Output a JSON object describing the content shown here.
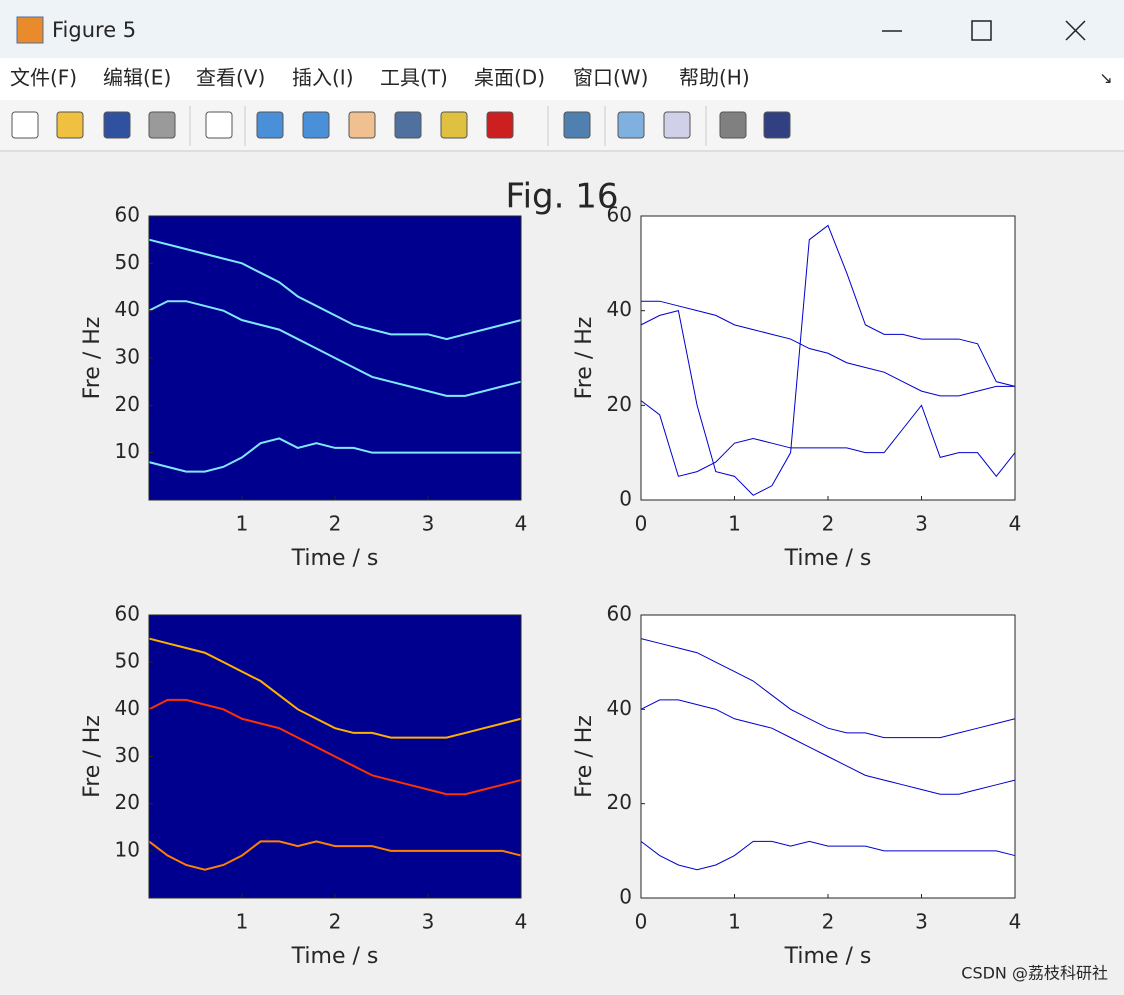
{
  "window": {
    "title": "Figure 5",
    "menu": [
      "文件(F)",
      "编辑(E)",
      "查看(V)",
      "插入(I)",
      "工具(T)",
      "桌面(D)",
      "窗口(W)",
      "帮助(H)"
    ]
  },
  "figure_title": "Fig. 16",
  "chart_data": [
    {
      "type": "image",
      "background": "#00008f",
      "xlabel": "Time / s",
      "ylabel": "Fre / Hz",
      "x": [
        0,
        0.2,
        0.4,
        0.6,
        0.8,
        1,
        1.2,
        1.4,
        1.6,
        1.8,
        2,
        2.2,
        2.4,
        2.6,
        2.8,
        3,
        3.2,
        3.4,
        3.6,
        3.8,
        4
      ],
      "series": [
        {
          "color": "#7fe8ff",
          "values": [
            55,
            54,
            53,
            52,
            51,
            50,
            48,
            46,
            43,
            41,
            39,
            37,
            36,
            35,
            35,
            35,
            34,
            35,
            36,
            37,
            38
          ]
        },
        {
          "color": "#7fe8ff",
          "values": [
            40,
            42,
            42,
            41,
            40,
            38,
            37,
            36,
            34,
            32,
            30,
            28,
            26,
            25,
            24,
            23,
            22,
            22,
            23,
            24,
            25
          ]
        },
        {
          "color": "#7fe8ff",
          "values": [
            8,
            7,
            6,
            6,
            7,
            9,
            12,
            13,
            11,
            12,
            11,
            11,
            10,
            10,
            10,
            10,
            10,
            10,
            10,
            10,
            10
          ]
        }
      ],
      "xlim": [
        0,
        4
      ],
      "ylim": [
        0,
        60
      ],
      "xticks": [
        1,
        2,
        3,
        4
      ],
      "yticks": [
        10,
        20,
        30,
        40,
        50,
        60
      ]
    },
    {
      "type": "line",
      "xlabel": "Time / s",
      "ylabel": "Fre / Hz",
      "x": [
        0,
        0.2,
        0.4,
        0.6,
        0.8,
        1,
        1.2,
        1.4,
        1.6,
        1.8,
        2,
        2.2,
        2.4,
        2.6,
        2.8,
        3,
        3.2,
        3.4,
        3.6,
        3.8,
        4
      ],
      "series": [
        {
          "color": "#0000cc",
          "values": [
            42,
            42,
            41,
            40,
            39,
            37,
            36,
            35,
            34,
            32,
            31,
            29,
            28,
            27,
            25,
            23,
            22,
            22,
            23,
            24,
            24
          ]
        },
        {
          "color": "#0000cc",
          "values": [
            37,
            39,
            40,
            20,
            6,
            5,
            1,
            3,
            10,
            55,
            58,
            48,
            37,
            35,
            35,
            34,
            34,
            34,
            33,
            25,
            24
          ]
        },
        {
          "color": "#0000cc",
          "values": [
            21,
            18,
            5,
            6,
            8,
            12,
            13,
            12,
            11,
            11,
            11,
            11,
            10,
            10,
            15,
            20,
            9,
            10,
            10,
            5,
            10
          ]
        }
      ],
      "xlim": [
        0,
        4
      ],
      "ylim": [
        0,
        60
      ],
      "xticks": [
        0,
        1,
        2,
        3,
        4
      ],
      "yticks": [
        0,
        20,
        40,
        60
      ]
    },
    {
      "type": "image",
      "background": "#00008f",
      "xlabel": "Time / s",
      "ylabel": "Fre / Hz",
      "x": [
        0,
        0.2,
        0.4,
        0.6,
        0.8,
        1,
        1.2,
        1.4,
        1.6,
        1.8,
        2,
        2.2,
        2.4,
        2.6,
        2.8,
        3,
        3.2,
        3.4,
        3.6,
        3.8,
        4
      ],
      "series": [
        {
          "color": "#ffb000",
          "values": [
            55,
            54,
            53,
            52,
            50,
            48,
            46,
            43,
            40,
            38,
            36,
            35,
            35,
            34,
            34,
            34,
            34,
            35,
            36,
            37,
            38
          ]
        },
        {
          "color": "#ff3000",
          "values": [
            40,
            42,
            42,
            41,
            40,
            38,
            37,
            36,
            34,
            32,
            30,
            28,
            26,
            25,
            24,
            23,
            22,
            22,
            23,
            24,
            25
          ]
        },
        {
          "color": "#ff8000",
          "values": [
            12,
            9,
            7,
            6,
            7,
            9,
            12,
            12,
            11,
            12,
            11,
            11,
            11,
            10,
            10,
            10,
            10,
            10,
            10,
            10,
            9
          ]
        }
      ],
      "xlim": [
        0,
        4
      ],
      "ylim": [
        0,
        60
      ],
      "xticks": [
        1,
        2,
        3,
        4
      ],
      "yticks": [
        10,
        20,
        30,
        40,
        50,
        60
      ]
    },
    {
      "type": "line",
      "xlabel": "Time / s",
      "ylabel": "Fre / Hz",
      "x": [
        0,
        0.2,
        0.4,
        0.6,
        0.8,
        1,
        1.2,
        1.4,
        1.6,
        1.8,
        2,
        2.2,
        2.4,
        2.6,
        2.8,
        3,
        3.2,
        3.4,
        3.6,
        3.8,
        4
      ],
      "series": [
        {
          "color": "#0000cc",
          "values": [
            55,
            54,
            53,
            52,
            50,
            48,
            46,
            43,
            40,
            38,
            36,
            35,
            35,
            34,
            34,
            34,
            34,
            35,
            36,
            37,
            38
          ]
        },
        {
          "color": "#0000cc",
          "values": [
            40,
            42,
            42,
            41,
            40,
            38,
            37,
            36,
            34,
            32,
            30,
            28,
            26,
            25,
            24,
            23,
            22,
            22,
            23,
            24,
            25
          ]
        },
        {
          "color": "#0000cc",
          "values": [
            12,
            9,
            7,
            6,
            7,
            9,
            12,
            12,
            11,
            12,
            11,
            11,
            11,
            10,
            10,
            10,
            10,
            10,
            10,
            10,
            9
          ]
        }
      ],
      "xlim": [
        0,
        4
      ],
      "ylim": [
        0,
        60
      ],
      "xticks": [
        0,
        1,
        2,
        3,
        4
      ],
      "yticks": [
        0,
        20,
        40,
        60
      ]
    }
  ],
  "watermark": "CSDN @荔枝科研社"
}
